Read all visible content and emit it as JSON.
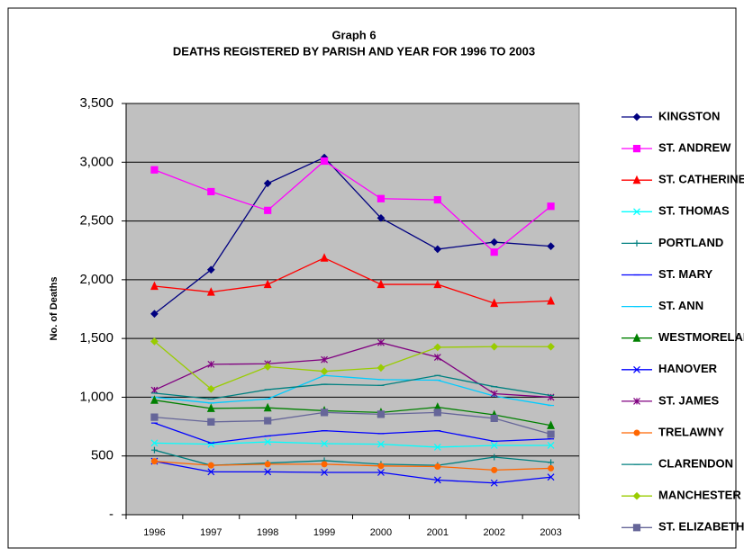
{
  "chart_data": {
    "type": "line",
    "title": "Graph 6",
    "subtitle": "DEATHS REGISTERED BY PARISH AND YEAR FOR 1996 TO 2003",
    "y_label": "No. of Deaths",
    "categories": [
      "1996",
      "1997",
      "1998",
      "1999",
      "2000",
      "2001",
      "2002",
      "2003"
    ],
    "ylim": [
      0,
      3500
    ],
    "yticks": [
      {
        "value": 0,
        "label": "-"
      },
      500,
      {
        "value": 1000,
        "label": "1,000"
      },
      {
        "value": 1500,
        "label": "1,500"
      },
      {
        "value": 2000,
        "label": "2,000"
      },
      {
        "value": 2500,
        "label": "2,500"
      },
      {
        "value": 3000,
        "label": "3,000"
      },
      {
        "value": 3500,
        "label": "3,500"
      }
    ],
    "grid": true,
    "legend": "right",
    "series": [
      {
        "name": "KINGSTON",
        "color": "#000080",
        "marker": "diamond",
        "values": [
          1710,
          2085,
          2820,
          3040,
          2525,
          2260,
          2320,
          2285
        ]
      },
      {
        "name": "ST. ANDREW",
        "color": "#ff00ff",
        "marker": "square",
        "values": [
          2935,
          2750,
          2590,
          3010,
          2690,
          2680,
          2235,
          2625
        ]
      },
      {
        "name": "ST. CATHERINE",
        "color": "#ff0000",
        "marker": "triangle",
        "values": [
          1945,
          1895,
          1960,
          2185,
          1960,
          1960,
          1800,
          1820
        ]
      },
      {
        "name": "ST. THOMAS",
        "color": "#00ffff",
        "marker": "x",
        "values": [
          610,
          600,
          620,
          605,
          600,
          575,
          590,
          590
        ]
      },
      {
        "name": "PORTLAND",
        "color": "#008080",
        "marker": "plus",
        "values": [
          550,
          420,
          440,
          460,
          430,
          420,
          490,
          445
        ]
      },
      {
        "name": "ST. MARY",
        "color": "#0000ff",
        "marker": "dash",
        "values": [
          780,
          610,
          670,
          715,
          690,
          715,
          625,
          645
        ]
      },
      {
        "name": "ST. ANN",
        "color": "#00ccff",
        "marker": "dash",
        "values": [
          1000,
          950,
          985,
          1185,
          1150,
          1145,
          1010,
          930
        ]
      },
      {
        "name": "WESTMORELAND",
        "color": "#008000",
        "marker": "triangle",
        "values": [
          975,
          905,
          910,
          885,
          870,
          915,
          850,
          760
        ]
      },
      {
        "name": "HANOVER",
        "color": "#0000ff",
        "marker": "x",
        "values": [
          455,
          365,
          365,
          360,
          360,
          295,
          270,
          320
        ]
      },
      {
        "name": "ST. JAMES",
        "color": "#800080",
        "marker": "star",
        "values": [
          1060,
          1280,
          1285,
          1320,
          1465,
          1340,
          1030,
          1000
        ]
      },
      {
        "name": "TRELAWNY",
        "color": "#ff6600",
        "marker": "circle",
        "values": [
          455,
          420,
          430,
          430,
          415,
          410,
          380,
          395
        ]
      },
      {
        "name": "CLARENDON",
        "color": "#008080",
        "marker": "dash",
        "values": [
          1035,
          985,
          1065,
          1110,
          1100,
          1185,
          1090,
          1015
        ]
      },
      {
        "name": "MANCHESTER",
        "color": "#99cc00",
        "marker": "diamond",
        "values": [
          1475,
          1070,
          1260,
          1220,
          1250,
          1425,
          1430,
          1430
        ]
      },
      {
        "name": "ST. ELIZABETH",
        "color": "#666699",
        "marker": "square",
        "values": [
          830,
          790,
          800,
          870,
          855,
          870,
          820,
          685
        ]
      }
    ]
  }
}
